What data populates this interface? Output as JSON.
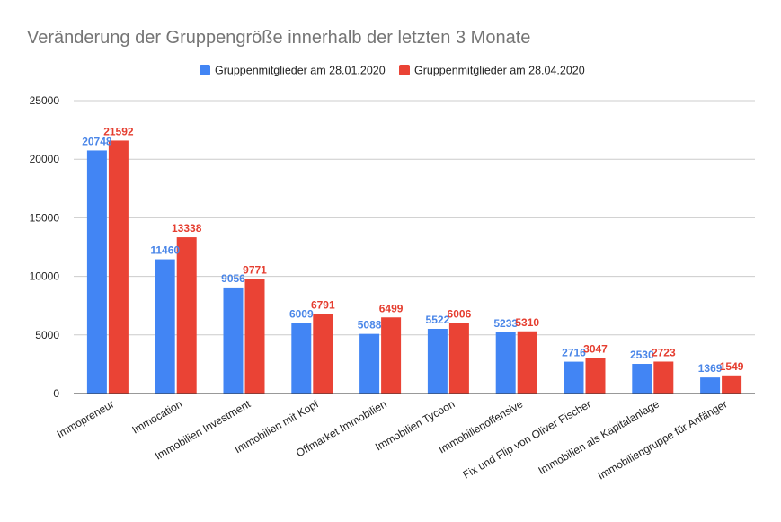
{
  "chart_data": {
    "type": "bar",
    "title": "Veränderung der Gruppengröße innerhalb der letzten 3 Monate",
    "xlabel": "",
    "ylabel": "",
    "ylim": [
      0,
      25000
    ],
    "yticks": [
      0,
      5000,
      10000,
      15000,
      20000,
      25000
    ],
    "grid": true,
    "legend_position": "top",
    "categories": [
      "Immopreneur",
      "Immocation",
      "Immobilien Investment",
      "Immobilien mit Kopf",
      "Offmarket Immobilien",
      "Immobilien Tycoon",
      "Immobilienoffensive",
      "Fix und Flip von Oliver Fischer",
      "Immobilien als Kapitalanlage",
      "Immobiliengruppe für Anfänger"
    ],
    "series": [
      {
        "name": "Gruppenmitglieder am 28.01.2020",
        "color": "#4285f4",
        "label_color": "#4a86e8",
        "values": [
          20748,
          11460,
          9056,
          6009,
          5088,
          5522,
          5233,
          2716,
          2530,
          1369
        ]
      },
      {
        "name": "Gruppenmitglieder am 28.04.2020",
        "color": "#ea4335",
        "label_color": "#e53e30",
        "values": [
          21592,
          13338,
          9771,
          6791,
          6499,
          6006,
          5310,
          3047,
          2723,
          1549
        ]
      }
    ]
  }
}
